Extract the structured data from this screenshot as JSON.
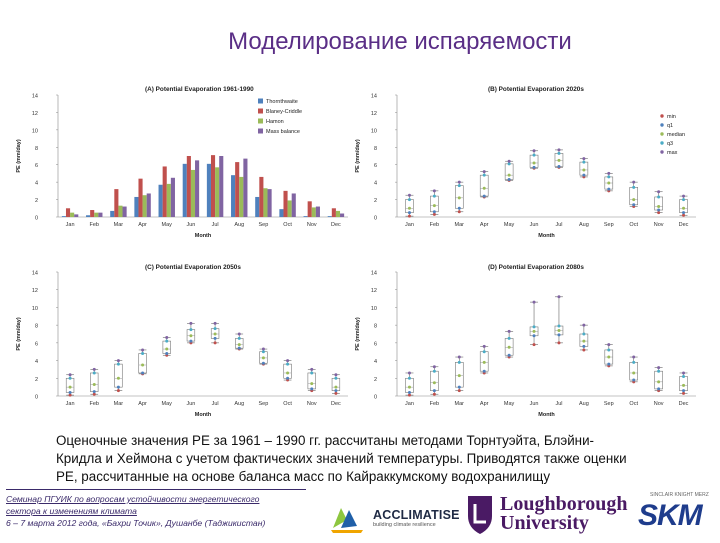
{
  "slide": {
    "title": "Моделирование испаряемости",
    "caption_lines": [
      "Оценочные значения PE за 1961 – 1990 гг. рассчитаны методами Торнтуэйта, Блэйни-",
      "Кридла и Хеймона с учетом фактических значений температуры. Приводятся также оценки",
      "PE, рассчитанные на основе баланса масс по Кайраккумскому водохранилищу"
    ],
    "footer": {
      "line1": "Семинар ПГУИК по вопросам устойчивости энергетического",
      "line2": "сектора к изменениям климата",
      "line3": "6 – 7 марта 2012 года, «Бахри Точик», Душанбе (Таджикистан)"
    },
    "logos": {
      "acclimatise": "ACCLIMATISE",
      "acclimatise_tagline": "building climate resilience",
      "loughborough_1": "Loughborough",
      "loughborough_2": "University",
      "skm": "SKM",
      "skm_tagline": "SINCLAIR KNIGHT MERZ"
    },
    "colors": {
      "title": "#5a2e86",
      "thornthwaite": "#4f81bd",
      "blaney_criddle": "#c0504d",
      "hamon": "#9bbb59",
      "mass_balance": "#8064a2",
      "min": "#c0504d",
      "q1": "#4f81bd",
      "median": "#9bbb59",
      "q3": "#4bacc6",
      "max": "#8064a2"
    }
  },
  "chart_data": [
    {
      "type": "bar",
      "title": "(A) Potential Evaporation 1961-1990",
      "xlabel": "Month",
      "ylabel": "PE (mm/day)",
      "ylim": [
        0,
        14
      ],
      "yticks": [
        0,
        2,
        4,
        6,
        8,
        10,
        12,
        14
      ],
      "categories": [
        "Jan",
        "Feb",
        "Mar",
        "Apr",
        "May",
        "Jun",
        "Jul",
        "Aug",
        "Sep",
        "Oct",
        "Nov",
        "Dec"
      ],
      "legend_position": "top-right",
      "series": [
        {
          "name": "Thornthwaite",
          "values": [
            0.1,
            0.2,
            0.7,
            2.3,
            3.7,
            6.1,
            6.1,
            4.8,
            2.3,
            0.9,
            0.1,
            0.1
          ]
        },
        {
          "name": "Blaney-Criddle",
          "values": [
            1.0,
            0.8,
            3.2,
            4.4,
            5.8,
            7.0,
            7.1,
            6.3,
            4.6,
            3.0,
            1.8,
            1.0
          ]
        },
        {
          "name": "Hamon",
          "values": [
            0.5,
            0.5,
            1.3,
            2.5,
            3.8,
            5.4,
            5.7,
            4.6,
            3.3,
            1.9,
            1.1,
            0.7
          ]
        },
        {
          "name": "Mass balance",
          "values": [
            0.3,
            0.5,
            1.2,
            2.7,
            4.5,
            6.5,
            7.0,
            6.7,
            3.2,
            2.7,
            1.2,
            0.4
          ]
        }
      ]
    },
    {
      "type": "box",
      "title": "(B) Potential Evaporation 2020s",
      "xlabel": "Month",
      "ylabel": "PE (mm/day)",
      "ylim": [
        0,
        14
      ],
      "yticks": [
        0,
        2,
        4,
        6,
        8,
        10,
        12,
        14
      ],
      "categories": [
        "Jan",
        "Feb",
        "Mar",
        "Apr",
        "May",
        "Jun",
        "Jul",
        "Aug",
        "Sep",
        "Oct",
        "Nov",
        "Dec"
      ],
      "legend_position": "top-right",
      "legend": [
        "min",
        "q1",
        "median",
        "q3",
        "max"
      ],
      "boxes": [
        {
          "min": 0.1,
          "q1": 0.5,
          "median": 1.0,
          "q3": 2.0,
          "max": 2.5
        },
        {
          "min": 0.3,
          "q1": 0.6,
          "median": 1.3,
          "q3": 2.4,
          "max": 3.0
        },
        {
          "min": 0.6,
          "q1": 1.0,
          "median": 2.2,
          "q3": 3.6,
          "max": 4.0
        },
        {
          "min": 2.3,
          "q1": 2.4,
          "median": 3.3,
          "q3": 4.8,
          "max": 5.2
        },
        {
          "min": 4.2,
          "q1": 4.3,
          "median": 4.8,
          "q3": 6.1,
          "max": 6.4
        },
        {
          "min": 5.6,
          "q1": 5.7,
          "median": 6.2,
          "q3": 7.1,
          "max": 7.6
        },
        {
          "min": 5.7,
          "q1": 5.8,
          "median": 6.5,
          "q3": 7.3,
          "max": 7.7
        },
        {
          "min": 4.6,
          "q1": 4.8,
          "median": 5.4,
          "q3": 6.3,
          "max": 6.7
        },
        {
          "min": 3.0,
          "q1": 3.2,
          "median": 3.9,
          "q3": 4.6,
          "max": 5.0
        },
        {
          "min": 1.2,
          "q1": 1.4,
          "median": 2.0,
          "q3": 3.4,
          "max": 4.0
        },
        {
          "min": 0.5,
          "q1": 0.8,
          "median": 1.2,
          "q3": 2.3,
          "max": 2.9
        },
        {
          "min": 0.2,
          "q1": 0.5,
          "median": 1.0,
          "q3": 2.0,
          "max": 2.4
        }
      ]
    },
    {
      "type": "box",
      "title": "(C) Potential Evaporation 2050s",
      "xlabel": "Month",
      "ylabel": "PE (mm/day)",
      "ylim": [
        0,
        14
      ],
      "yticks": [
        0,
        2,
        4,
        6,
        8,
        10,
        12,
        14
      ],
      "categories": [
        "Jan",
        "Feb",
        "Mar",
        "Apr",
        "May",
        "Jun",
        "Jul",
        "Aug",
        "Sep",
        "Oct",
        "Nov",
        "Dec"
      ],
      "boxes": [
        {
          "min": 0.1,
          "q1": 0.4,
          "median": 1.0,
          "q3": 2.0,
          "max": 2.4
        },
        {
          "min": 0.2,
          "q1": 0.5,
          "median": 1.3,
          "q3": 2.6,
          "max": 3.0
        },
        {
          "min": 0.6,
          "q1": 1.0,
          "median": 2.0,
          "q3": 3.6,
          "max": 4.0
        },
        {
          "min": 2.5,
          "q1": 2.6,
          "median": 3.5,
          "q3": 4.8,
          "max": 5.2
        },
        {
          "min": 4.6,
          "q1": 4.8,
          "median": 5.3,
          "q3": 6.2,
          "max": 6.6
        },
        {
          "min": 6.0,
          "q1": 6.2,
          "median": 6.8,
          "q3": 7.5,
          "max": 8.2
        },
        {
          "min": 6.0,
          "q1": 6.5,
          "median": 7.0,
          "q3": 7.6,
          "max": 8.2
        },
        {
          "min": 5.3,
          "q1": 5.4,
          "median": 5.8,
          "q3": 6.5,
          "max": 7.0
        },
        {
          "min": 3.6,
          "q1": 3.7,
          "median": 4.3,
          "q3": 5.0,
          "max": 5.3
        },
        {
          "min": 1.8,
          "q1": 2.0,
          "median": 2.6,
          "q3": 3.6,
          "max": 4.0
        },
        {
          "min": 0.6,
          "q1": 0.8,
          "median": 1.4,
          "q3": 2.6,
          "max": 3.0
        },
        {
          "min": 0.3,
          "q1": 0.6,
          "median": 1.0,
          "q3": 2.0,
          "max": 2.4
        }
      ]
    },
    {
      "type": "box",
      "title": "(D) Potential Evaporation 2080s",
      "xlabel": "Month",
      "ylabel": "PE (mm/day)",
      "ylim": [
        0,
        14
      ],
      "yticks": [
        0,
        2,
        4,
        6,
        8,
        10,
        12,
        14
      ],
      "categories": [
        "Jan",
        "Feb",
        "Mar",
        "Apr",
        "May",
        "Jun",
        "Jul",
        "Aug",
        "Sep",
        "Oct",
        "Nov",
        "Dec"
      ],
      "boxes": [
        {
          "min": 0.1,
          "q1": 0.4,
          "median": 1.0,
          "q3": 2.0,
          "max": 2.6
        },
        {
          "min": 0.2,
          "q1": 0.6,
          "median": 1.5,
          "q3": 2.8,
          "max": 3.3
        },
        {
          "min": 0.6,
          "q1": 1.0,
          "median": 2.3,
          "q3": 3.8,
          "max": 4.4
        },
        {
          "min": 2.6,
          "q1": 2.8,
          "median": 3.8,
          "q3": 5.0,
          "max": 5.6
        },
        {
          "min": 4.4,
          "q1": 4.6,
          "median": 5.5,
          "q3": 6.5,
          "max": 7.3
        },
        {
          "min": 5.8,
          "q1": 6.8,
          "median": 7.3,
          "q3": 7.8,
          "max": 10.6
        },
        {
          "min": 6.0,
          "q1": 6.9,
          "median": 7.4,
          "q3": 7.9,
          "max": 11.2
        },
        {
          "min": 5.2,
          "q1": 5.6,
          "median": 6.2,
          "q3": 7.0,
          "max": 8.0
        },
        {
          "min": 3.4,
          "q1": 3.6,
          "median": 4.4,
          "q3": 5.2,
          "max": 5.8
        },
        {
          "min": 1.6,
          "q1": 1.8,
          "median": 2.6,
          "q3": 3.8,
          "max": 4.4
        },
        {
          "min": 0.6,
          "q1": 0.8,
          "median": 1.6,
          "q3": 2.8,
          "max": 3.2
        },
        {
          "min": 0.3,
          "q1": 0.6,
          "median": 1.2,
          "q3": 2.2,
          "max": 2.6
        }
      ]
    }
  ]
}
